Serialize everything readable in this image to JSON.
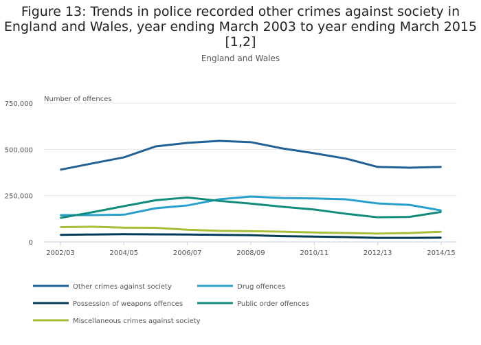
{
  "chart_data": {
    "type": "line",
    "title": "Figure 13: Trends in police recorded other crimes against society in England and Wales, year ending March 2003 to year ending March 2015 [1,2]",
    "subtitle": "England and Wales",
    "ylabel": "Number of offences",
    "xlabel": "",
    "ylim": [
      0,
      750000
    ],
    "yticks": [
      0,
      250000,
      500000,
      750000
    ],
    "ytick_labels": [
      "0",
      "250,000",
      "500,000",
      "750,000"
    ],
    "x": [
      "2002/03",
      "2003/04",
      "2004/05",
      "2005/06",
      "2006/07",
      "2007/08",
      "2008/09",
      "2009/10",
      "2010/11",
      "2011/12",
      "2012/13",
      "2013/14",
      "2014/15"
    ],
    "xtick_labels": [
      "2002/03",
      "2004/05",
      "2006/07",
      "2008/09",
      "2010/11",
      "2012/13",
      "2014/15"
    ],
    "grid": true,
    "legend_position": "bottom",
    "series": [
      {
        "name": "Other crimes against society",
        "color": "#206095",
        "values": [
          390000,
          424000,
          457000,
          516000,
          535000,
          546000,
          539000,
          505000,
          479000,
          450000,
          405000,
          401000,
          405000
        ]
      },
      {
        "name": "Drug offences",
        "color": "#27a0cc",
        "values": [
          145000,
          145000,
          147000,
          182000,
          197000,
          230000,
          245000,
          237000,
          235000,
          230000,
          208000,
          200000,
          170000
        ]
      },
      {
        "name": "Possession of weapons offences",
        "color": "#003c57",
        "values": [
          38000,
          40000,
          42000,
          41000,
          40000,
          38000,
          36000,
          31000,
          29000,
          26000,
          22000,
          22000,
          23000
        ]
      },
      {
        "name": "Public order offences",
        "color": "#118c7b",
        "values": [
          130000,
          160000,
          193000,
          225000,
          240000,
          222000,
          207000,
          190000,
          175000,
          152000,
          133000,
          135000,
          162000
        ]
      },
      {
        "name": "Miscellaneous crimes against society",
        "color": "#a8bd3a",
        "values": [
          80000,
          82000,
          77000,
          76000,
          66000,
          60000,
          58000,
          55000,
          51000,
          48000,
          45000,
          48000,
          55000
        ]
      }
    ]
  }
}
